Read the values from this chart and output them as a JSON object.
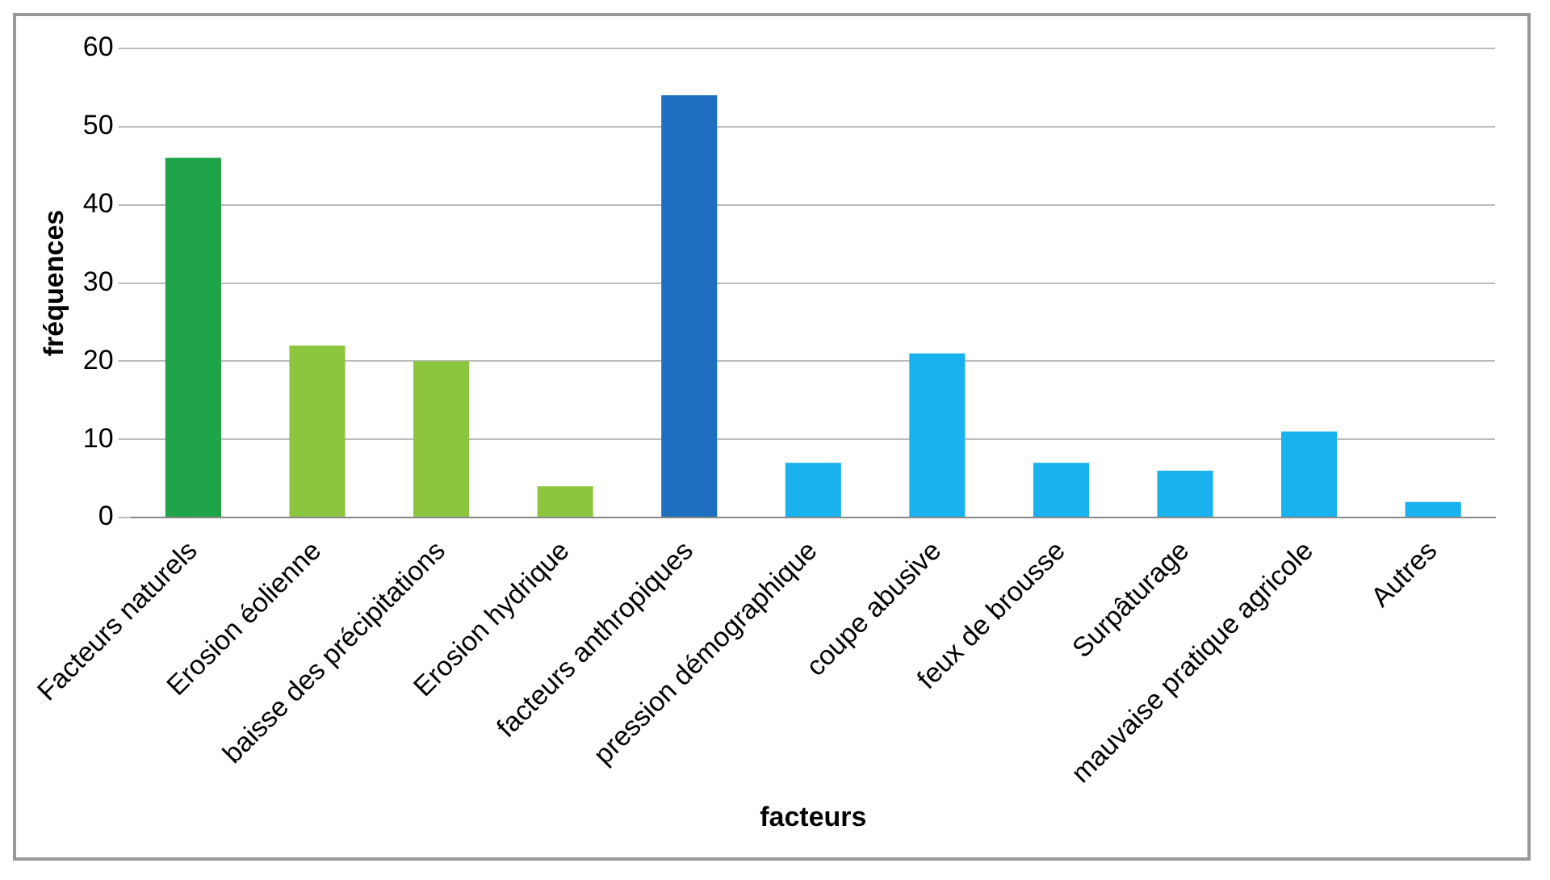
{
  "chart_data": {
    "type": "bar",
    "xlabel": "facteurs",
    "ylabel": "fréquences",
    "categories": [
      "Facteurs naturels",
      "Erosion éolienne",
      "baisse des précipitations",
      "Erosion hydrique",
      "facteurs anthropiques",
      "pression démographique",
      "coupe abusive",
      "feux de brousse",
      "Surpâturage",
      "mauvaise pratique agricole",
      "Autres"
    ],
    "values": [
      46,
      22,
      20,
      4,
      54,
      7,
      21,
      7,
      6,
      11,
      2
    ],
    "colors": [
      "#1fa348",
      "#8cc63f",
      "#8cc63f",
      "#8cc63f",
      "#1e6fbf",
      "#1ab2ee",
      "#1ab2ee",
      "#1ab2ee",
      "#1ab2ee",
      "#1ab2ee",
      "#1ab2ee"
    ],
    "ylim": [
      0,
      60
    ],
    "yticks": [
      0,
      10,
      20,
      30,
      40,
      50,
      60
    ],
    "grid": "y",
    "legend": false
  }
}
